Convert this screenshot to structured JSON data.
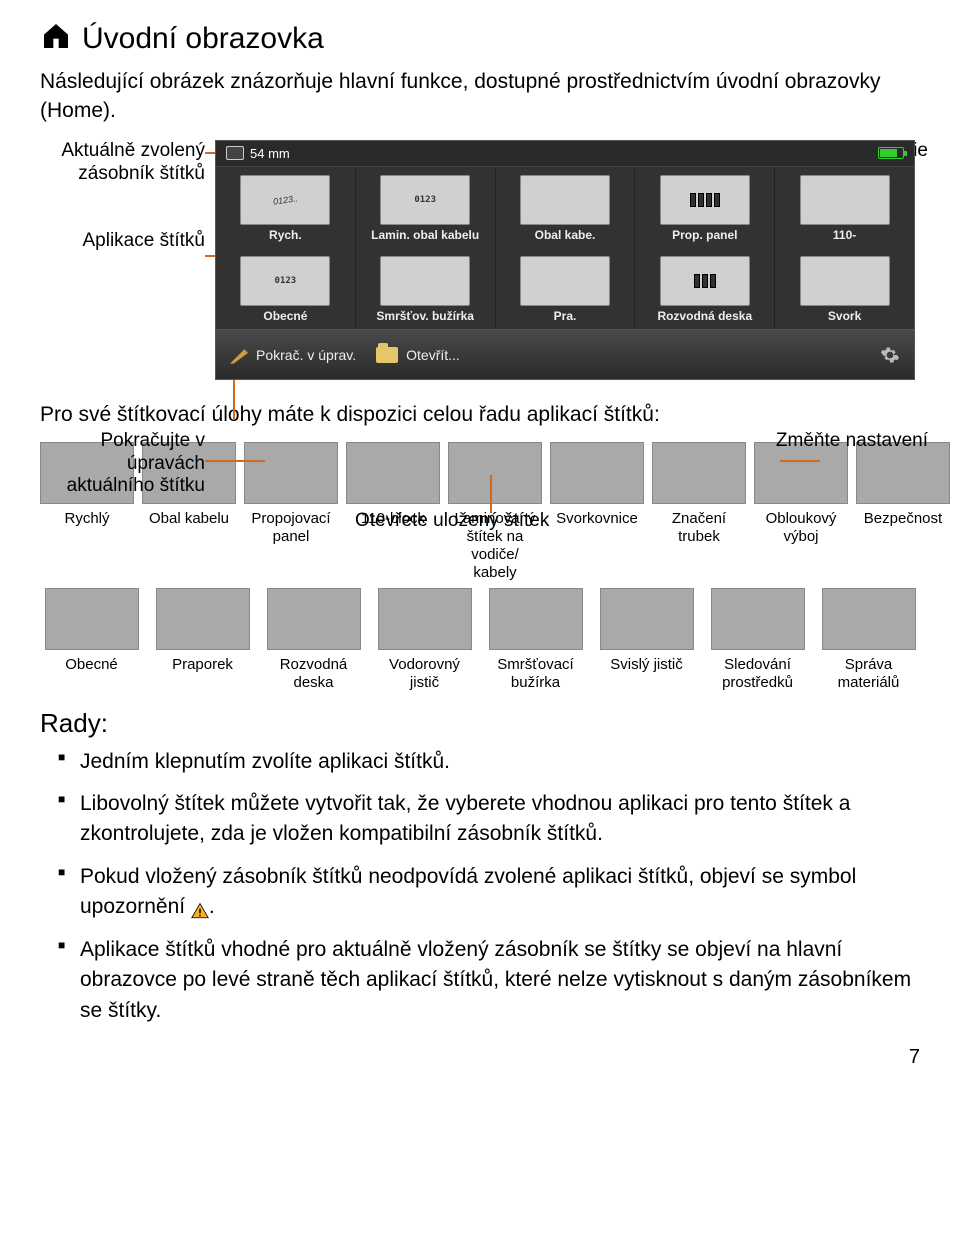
{
  "title": "Úvodní obrazovka",
  "intro": "Následující obrázek znázorňuje hlavní funkce, dostupné prostřednictvím úvodní obrazovky (Home).",
  "callouts": {
    "cartridge": "Aktuálně zvolený zásobník štítků",
    "apps": "Aplikace štítků",
    "continue": "Pokračujte v úpravách aktuálního štítku",
    "open": "Otevřete uložený štítek",
    "settings": "Změňte nastavení",
    "battery": "Stav baterie"
  },
  "screenshot": {
    "cartridge_width": "54 mm",
    "row1": [
      {
        "label": "Rych."
      },
      {
        "label": "Lamin. obal kabelu"
      },
      {
        "label": "Obal kabe."
      },
      {
        "label": "Prop. panel"
      },
      {
        "label": "110-"
      }
    ],
    "row2": [
      {
        "label": "Obecné"
      },
      {
        "label": "Smršťov. bužírka"
      },
      {
        "label": "Pra."
      },
      {
        "label": "Rozvodná deska"
      },
      {
        "label": "Svork"
      }
    ],
    "toolbar": {
      "continue": "Pokrač. v úprav.",
      "open": "Otevřít..."
    }
  },
  "task_sentence": "Pro své štítkovací úlohy máte k dispozici celou řadu aplikací štítků:",
  "app_grid": {
    "row1": [
      "Rychlý",
      "Obal kabelu",
      "Propojovací panel",
      "110-block",
      "Laminovaný štítek na vodiče/ kabely",
      "Svorkovnice",
      "Značení trubek",
      "Obloukový výboj",
      "Bezpečnost"
    ],
    "row2": [
      "Obecné",
      "Praporek",
      "Rozvodná deska",
      "Vodorovný jistič",
      "Smršťovací bužírka",
      "Svislý jistič",
      "Sledování prostředků",
      "Správa materiálů"
    ]
  },
  "tips_heading": "Rady:",
  "tips": [
    "Jedním klepnutím zvolíte aplikaci štítků.",
    "Libovolný štítek můžete vytvořit tak, že vyberete vhodnou aplikaci pro tento štítek a zkontrolujete, zda je vložen kompatibilní zásobník štítků.",
    "Pokud vložený zásobník štítků neodpovídá zvolené aplikaci štítků, objeví se symbol upozornění ",
    "Aplikace štítků vhodné pro aktuálně vložený zásobník se štítky se objeví na hlavní obrazovce po levé straně těch aplikací štítků, které nelze vytisknout s daným zásobníkem se štítky."
  ],
  "tip3_suffix": ".",
  "page_number": "7",
  "colors": {
    "leader": "#d2691e"
  }
}
